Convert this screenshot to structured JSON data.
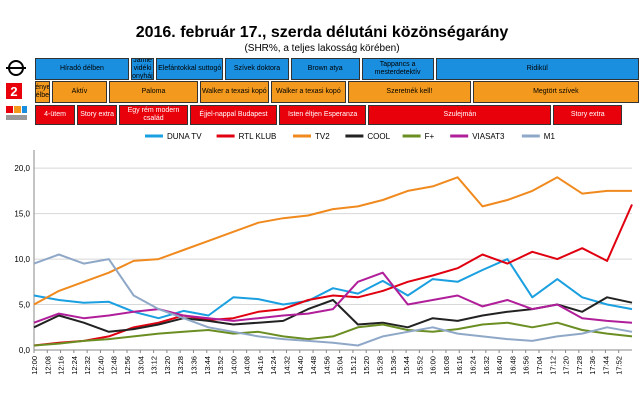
{
  "title": "2016. február 17., szerda délutáni közönségarány",
  "subtitle": "(SHR%, a teljes lakosság körében)",
  "logos": [
    "m1-logo",
    "tv2-logo",
    "rtl-klub-logo"
  ],
  "schedule": {
    "m1": [
      {
        "label": "Híradó délben",
        "s": 0,
        "e": 57
      },
      {
        "label": "Jamie vidéki konyhája",
        "s": 57,
        "e": 72
      },
      {
        "label": "Elefántokkal suttogó",
        "s": 72,
        "e": 113
      },
      {
        "label": "Szívek doktora",
        "s": 113,
        "e": 152
      },
      {
        "label": "Brown atya",
        "s": 152,
        "e": 194
      },
      {
        "label": "Tappancs a mesterdetektív",
        "s": 194,
        "e": 238
      },
      {
        "label": "Ridikül",
        "s": 238,
        "e": 360
      }
    ],
    "tv2": [
      {
        "label": "Tények délben",
        "s": 0,
        "e": 10
      },
      {
        "label": "Aktív",
        "s": 10,
        "e": 44
      },
      {
        "label": "Paloma",
        "s": 44,
        "e": 98
      },
      {
        "label": "Walker a texasi kopó",
        "s": 98,
        "e": 140
      },
      {
        "label": "Walker a texasi kopó",
        "s": 140,
        "e": 186
      },
      {
        "label": "Szeretnék kell!",
        "s": 186,
        "e": 260
      },
      {
        "label": "Megtört szívek",
        "s": 260,
        "e": 360
      }
    ],
    "rtl": [
      {
        "label": "4-ütem",
        "s": 0,
        "e": 25
      },
      {
        "label": "Story extra",
        "s": 25,
        "e": 50
      },
      {
        "label": "Egy rém modern család",
        "s": 50,
        "e": 92
      },
      {
        "label": "Éjjel-nappal Budapest",
        "s": 92,
        "e": 145
      },
      {
        "label": "Isten éltjen Esperanza",
        "s": 145,
        "e": 198
      },
      {
        "label": "Szulejmán",
        "s": 198,
        "e": 308
      },
      {
        "label": "Story extra",
        "s": 308,
        "e": 350
      }
    ]
  },
  "chart_data": {
    "type": "line",
    "ylim": [
      0,
      22
    ],
    "yticks": [
      "0,0",
      "5,0",
      "10,0",
      "15,0",
      "20,0"
    ],
    "xticks": [
      "12:00",
      "12:08",
      "12:16",
      "12:24",
      "12:32",
      "12:40",
      "12:48",
      "12:56",
      "13:04",
      "13:12",
      "13:20",
      "13:28",
      "13:36",
      "13:44",
      "13:52",
      "14:00",
      "14:08",
      "14:16",
      "14:24",
      "14:32",
      "14:40",
      "14:48",
      "14:56",
      "15:04",
      "15:12",
      "15:20",
      "15:28",
      "15:36",
      "15:44",
      "15:52",
      "16:00",
      "16:08",
      "16:16",
      "16:24",
      "16:32",
      "16:40",
      "16:48",
      "16:56",
      "17:04",
      "17:12",
      "17:20",
      "17:28",
      "17:36",
      "17:44",
      "17:52"
    ],
    "x_minutes": [
      0,
      15,
      30,
      45,
      60,
      75,
      90,
      105,
      120,
      135,
      150,
      165,
      180,
      195,
      210,
      225,
      240,
      255,
      270,
      285,
      300,
      315,
      330,
      345,
      360
    ],
    "series": [
      {
        "name": "DUNA TV",
        "color": "#1a9fe0",
        "values": [
          6.0,
          5.5,
          5.2,
          5.3,
          4.2,
          3.5,
          4.3,
          3.8,
          5.8,
          5.6,
          5.0,
          5.4,
          6.8,
          6.2,
          7.6,
          6.0,
          7.8,
          7.5,
          8.8,
          10.0,
          5.8,
          7.8,
          5.8,
          5.0,
          4.5
        ]
      },
      {
        "name": "RTL KLUB",
        "color": "#e00010",
        "values": [
          0.5,
          0.8,
          1.0,
          1.5,
          2.5,
          3.0,
          3.8,
          3.3,
          3.5,
          4.2,
          4.5,
          5.5,
          6.0,
          5.8,
          6.5,
          7.5,
          8.2,
          9.0,
          10.5,
          9.5,
          10.8,
          10.0,
          11.2,
          9.8,
          16.0
        ]
      },
      {
        "name": "TV2",
        "color": "#f08a1e",
        "values": [
          5.0,
          6.5,
          7.5,
          8.5,
          9.8,
          10.0,
          11.0,
          12.0,
          13.0,
          14.0,
          14.5,
          14.8,
          15.5,
          15.8,
          16.5,
          17.5,
          18.0,
          19.0,
          15.8,
          16.5,
          17.5,
          19.0,
          17.2,
          17.5,
          17.5
        ]
      },
      {
        "name": "COOL",
        "color": "#222222",
        "values": [
          2.5,
          3.8,
          3.0,
          2.0,
          2.3,
          2.8,
          3.5,
          3.2,
          2.8,
          3.0,
          3.2,
          4.5,
          5.5,
          2.8,
          3.0,
          2.5,
          3.5,
          3.2,
          3.8,
          4.2,
          4.5,
          5.0,
          4.2,
          5.8,
          5.2
        ]
      },
      {
        "name": "F+",
        "color": "#6b8e23",
        "values": [
          0.5,
          0.7,
          1.0,
          1.2,
          1.5,
          1.8,
          2.0,
          2.2,
          1.8,
          2.0,
          1.5,
          1.2,
          1.5,
          2.5,
          2.8,
          2.2,
          2.0,
          2.3,
          2.8,
          3.0,
          2.5,
          3.0,
          2.2,
          1.8,
          1.5
        ]
      },
      {
        "name": "VIASAT3",
        "color": "#b01e9a",
        "values": [
          3.0,
          4.0,
          3.5,
          3.8,
          4.2,
          4.5,
          3.8,
          3.5,
          3.2,
          3.5,
          3.8,
          4.0,
          4.5,
          7.5,
          8.5,
          5.0,
          5.5,
          6.0,
          4.8,
          5.5,
          4.5,
          5.0,
          3.5,
          3.2,
          3.0
        ]
      },
      {
        "name": "M1",
        "color": "#8fa8c8",
        "values": [
          9.5,
          10.5,
          9.5,
          10.0,
          6.0,
          4.5,
          3.5,
          2.5,
          2.0,
          1.5,
          1.2,
          1.0,
          0.8,
          0.5,
          1.5,
          2.0,
          2.5,
          1.8,
          1.5,
          1.2,
          1.0,
          1.5,
          1.8,
          2.5,
          2.0
        ]
      }
    ]
  }
}
